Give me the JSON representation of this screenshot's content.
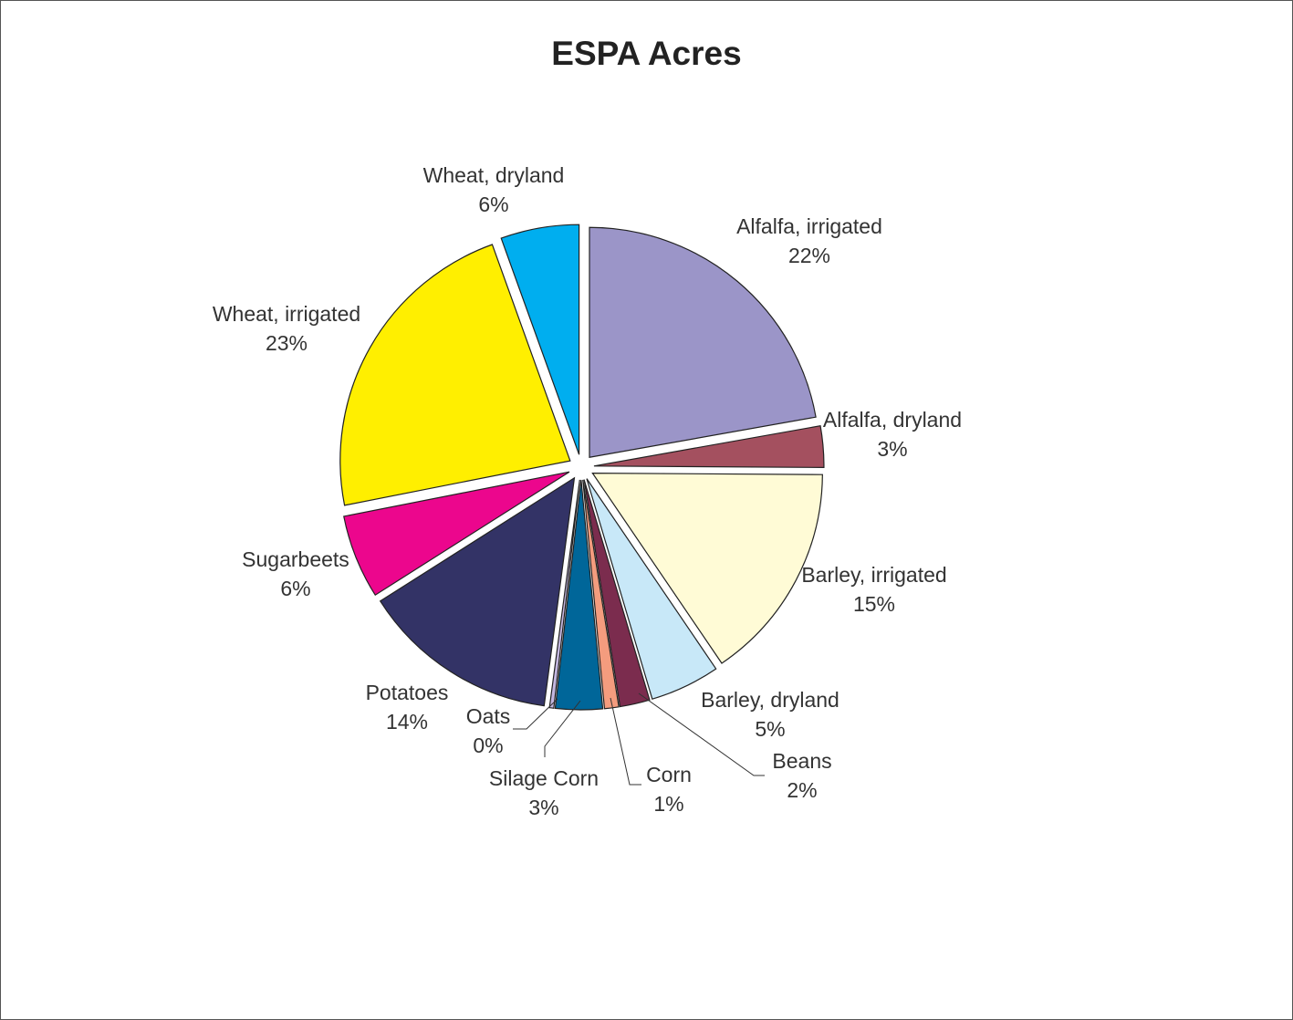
{
  "chart_data": {
    "type": "pie",
    "title": "ESPA Acres",
    "slices": [
      {
        "label": "Alfalfa, irrigated",
        "pct_label": "22%",
        "value": 22.2,
        "color": "#9B95C8"
      },
      {
        "label": "Alfalfa, dryland",
        "pct_label": "3%",
        "value": 2.9,
        "color": "#A4505F"
      },
      {
        "label": "Barley, irrigated",
        "pct_label": "15%",
        "value": 15.4,
        "color": "#FFFBD6"
      },
      {
        "label": "Barley, dryland",
        "pct_label": "5%",
        "value": 4.9,
        "color": "#C8E8F8"
      },
      {
        "label": "Beans",
        "pct_label": "2%",
        "value": 2.1,
        "color": "#7B2C4E"
      },
      {
        "label": "Corn",
        "pct_label": "1%",
        "value": 1.0,
        "color": "#F49C7E"
      },
      {
        "label": "Silage Corn",
        "pct_label": "3%",
        "value": 3.3,
        "color": "#006699"
      },
      {
        "label": "Oats",
        "pct_label": "0%",
        "value": 0.3,
        "color": "#C3B7E0"
      },
      {
        "label": "Potatoes",
        "pct_label": "14%",
        "value": 13.9,
        "color": "#333366"
      },
      {
        "label": "Sugarbeets",
        "pct_label": "6%",
        "value": 5.9,
        "color": "#EC068D"
      },
      {
        "label": "Wheat, irrigated",
        "pct_label": "23%",
        "value": 22.6,
        "color": "#FFEF00"
      },
      {
        "label": "Wheat, dryland",
        "pct_label": "6%",
        "value": 5.5,
        "color": "#00AEEF"
      }
    ]
  }
}
